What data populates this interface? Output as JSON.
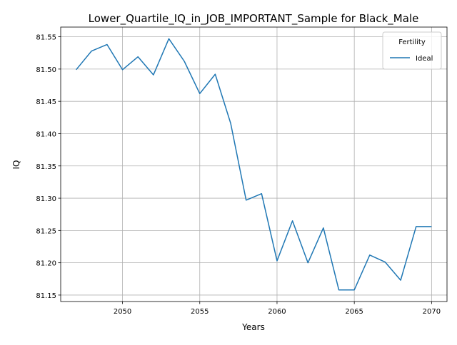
{
  "chart_data": {
    "type": "line",
    "title": "Lower_Quartile_IQ_in_JOB_IMPORTANT_Sample for Black_Male",
    "xlabel": "Years",
    "ylabel": "IQ",
    "xlim": [
      2046,
      2071
    ],
    "ylim": [
      81.14,
      81.565
    ],
    "x_ticks": [
      2050,
      2055,
      2060,
      2065,
      2070
    ],
    "y_ticks": [
      81.15,
      81.2,
      81.25,
      81.3,
      81.35,
      81.4,
      81.45,
      81.5,
      81.55
    ],
    "x_tick_labels": [
      "2050",
      "2055",
      "2060",
      "2065",
      "2070"
    ],
    "y_tick_labels": [
      "81.15",
      "81.20",
      "81.25",
      "81.30",
      "81.35",
      "81.40",
      "81.45",
      "81.50",
      "81.55"
    ],
    "grid": true,
    "legend": {
      "title": "Fertility",
      "position": "upper-right"
    },
    "x": [
      2047,
      2048,
      2049,
      2050,
      2051,
      2052,
      2053,
      2054,
      2055,
      2056,
      2057,
      2058,
      2059,
      2060,
      2061,
      2062,
      2063,
      2064,
      2065,
      2066,
      2067,
      2068,
      2069,
      2070
    ],
    "series": [
      {
        "name": "Ideal",
        "color": "#1f77b4",
        "values": [
          81.499,
          81.528,
          81.538,
          81.499,
          81.519,
          81.491,
          81.547,
          81.512,
          81.462,
          81.492,
          81.416,
          81.297,
          81.307,
          81.203,
          81.265,
          81.2,
          81.254,
          81.158,
          81.158,
          81.212,
          81.201,
          81.173,
          81.256,
          81.256
        ]
      }
    ]
  }
}
